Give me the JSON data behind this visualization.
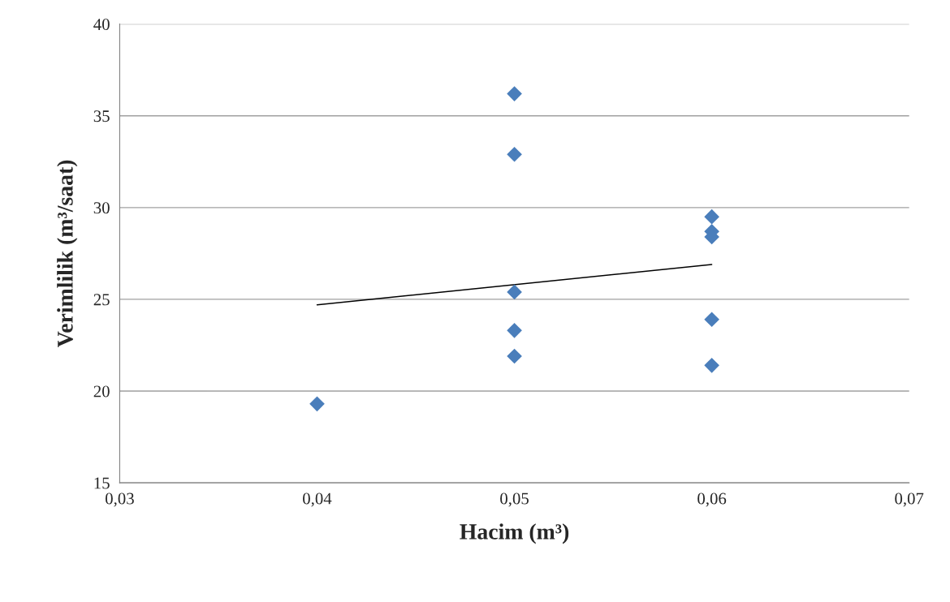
{
  "chart_data": {
    "type": "scatter",
    "xlabel": "Hacim (m³)",
    "ylabel": "Verimlilik (m³/saat)",
    "series": [
      {
        "color": "#4a7ebb",
        "marker": "diamond",
        "x": [
          0.04,
          0.05,
          0.05,
          0.05,
          0.05,
          0.05,
          0.06,
          0.06,
          0.06,
          0.06,
          0.06
        ],
        "values": [
          19.3,
          36.2,
          32.9,
          25.4,
          23.3,
          21.9,
          29.5,
          28.7,
          28.4,
          23.9,
          21.4
        ]
      },
      {
        "type": "line",
        "color": "#000000",
        "marker": "none",
        "x": [
          0.04,
          0.06
        ],
        "values": [
          24.7,
          26.9
        ]
      }
    ],
    "xlim": [
      0.03,
      0.07
    ],
    "xticks": [
      {
        "value": 0.03,
        "label": "0,03"
      },
      {
        "value": 0.04,
        "label": "0,04"
      },
      {
        "value": 0.05,
        "label": "0,05"
      },
      {
        "value": 0.06,
        "label": "0,06"
      },
      {
        "value": 0.07,
        "label": "0,07"
      }
    ],
    "ylim": [
      15,
      40
    ],
    "yticks": [
      15,
      20,
      25,
      30,
      35,
      40
    ],
    "grid": "y",
    "legend": false
  }
}
